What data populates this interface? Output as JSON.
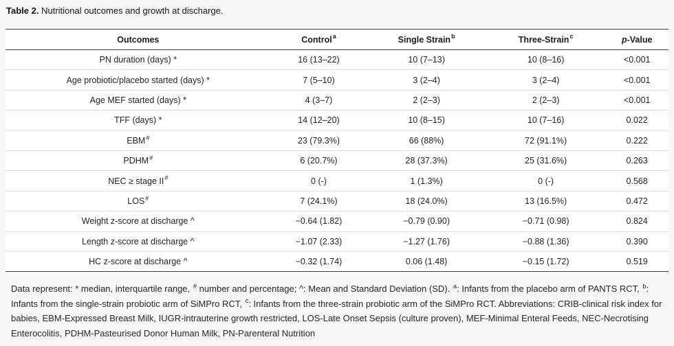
{
  "caption": {
    "label": "Table 2.",
    "text": " Nutritional outcomes and growth at discharge."
  },
  "table": {
    "columns": [
      {
        "label": "Outcomes",
        "sup": ""
      },
      {
        "label": "Control",
        "sup": "a"
      },
      {
        "label": "Single Strain",
        "sup": "b"
      },
      {
        "label": "Three-Strain",
        "sup": "c"
      },
      {
        "italic": "p",
        "label": "-Value",
        "sup": ""
      }
    ],
    "rows": [
      {
        "label": "PN duration (days) *",
        "sup": "",
        "control": "16 (13–22)",
        "single": "10 (7–13)",
        "three": "10 (8–16)",
        "p": "<0.001"
      },
      {
        "label": "Age probiotic/placebo started (days) *",
        "sup": "",
        "control": "7 (5–10)",
        "single": "3 (2–4)",
        "three": "3 (2–4)",
        "p": "<0.001"
      },
      {
        "label": "Age MEF started (days) *",
        "sup": "",
        "control": "4 (3–7)",
        "single": "2 (2–3)",
        "three": "2 (2–3)",
        "p": "<0.001"
      },
      {
        "label": "TFF (days) *",
        "sup": "",
        "control": "14 (12–20)",
        "single": "10 (8–15)",
        "three": "10 (7–16)",
        "p": "0.022"
      },
      {
        "label": "EBM",
        "sup": "#",
        "control": "23 (79.3%)",
        "single": "66 (88%)",
        "three": "72 (91.1%)",
        "p": "0.222"
      },
      {
        "label": "PDHM",
        "sup": "#",
        "control": "6 (20.7%)",
        "single": "28 (37.3%)",
        "three": "25 (31.6%)",
        "p": "0.263"
      },
      {
        "label": "NEC ≥ stage II",
        "sup": "#",
        "control": "0 (-)",
        "single": "1 (1.3%)",
        "three": "0 (-)",
        "p": "0.568"
      },
      {
        "label": "LOS",
        "sup": "#",
        "control": "7 (24.1%)",
        "single": "18 (24.0%)",
        "three": "13 (16.5%)",
        "p": "0.472"
      },
      {
        "label": "Weight z-score at discharge ^",
        "sup": "",
        "control": "−0.64 (1.82)",
        "single": "−0.79 (0.90)",
        "three": "−0.71 (0.98)",
        "p": "0.824"
      },
      {
        "label": "Length z-score at discharge ^",
        "sup": "",
        "control": "−1.07 (2.33)",
        "single": "−1.27 (1.76)",
        "three": "−0.88 (1.36)",
        "p": "0.390"
      },
      {
        "label": "HC z-score at discharge ^",
        "sup": "",
        "control": "−0.32 (1.74)",
        "single": "0.06 (1.48)",
        "three": "−0.15 (1.72)",
        "p": "0.519"
      }
    ]
  },
  "footnote": {
    "segments": [
      {
        "sup": false,
        "text": "Data represent: * median, interquartile range, "
      },
      {
        "sup": true,
        "text": "#"
      },
      {
        "sup": false,
        "text": " number and percentage; ^: Mean and Standard Deviation (SD). "
      },
      {
        "sup": true,
        "text": "a"
      },
      {
        "sup": false,
        "text": ": Infants from the placebo arm of PANTS RCT, "
      },
      {
        "sup": true,
        "text": "b"
      },
      {
        "sup": false,
        "text": ": Infants from the single-strain probiotic arm of SiMPro RCT, "
      },
      {
        "sup": true,
        "text": "c"
      },
      {
        "sup": false,
        "text": ": Infants from the three-strain probiotic arm of the SiMPro RCT. Abbreviations: CRIB-clinical risk index for babies, EBM-Expressed Breast Milk, IUGR-intrauterine growth restricted, LOS-Late Onset Sepsis (culture proven), MEF-Minimal Enteral Feeds, NEC-Necrotising Enterocolitis, PDHM-Pasteurised Donor Human Milk, PN-Parenteral Nutrition"
      }
    ]
  }
}
